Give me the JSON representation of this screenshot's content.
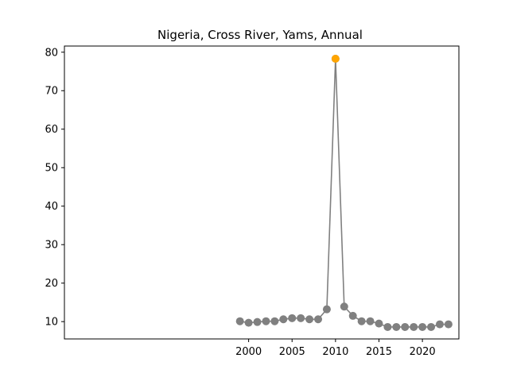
{
  "chart_data": {
    "type": "line",
    "title": "Nigeria, Cross River, Yams, Annual",
    "xlabel": "",
    "ylabel": "",
    "xlim": [
      1978.8,
      2024.2
    ],
    "ylim": [
      5.5,
      81.6
    ],
    "xticks": [
      2000,
      2005,
      2010,
      2015,
      2020
    ],
    "yticks": [
      10,
      20,
      30,
      40,
      50,
      60,
      70,
      80
    ],
    "grid": false,
    "series": [
      {
        "name": "Yams",
        "color": "#808080",
        "x": [
          1999,
          2000,
          2001,
          2002,
          2003,
          2004,
          2005,
          2006,
          2007,
          2008,
          2009,
          2010,
          2011,
          2012,
          2013,
          2014,
          2015,
          2016,
          2017,
          2018,
          2019,
          2020,
          2021,
          2022,
          2023
        ],
        "y": [
          10.1,
          9.7,
          9.9,
          10.1,
          10.1,
          10.6,
          10.9,
          10.9,
          10.6,
          10.6,
          13.2,
          78.3,
          13.9,
          11.5,
          10.1,
          10.1,
          9.5,
          8.6,
          8.6,
          8.6,
          8.6,
          8.6,
          8.6,
          9.3,
          9.3
        ]
      }
    ],
    "highlight": {
      "x": 2010,
      "y": 78.3,
      "color": "#ffa500"
    }
  }
}
